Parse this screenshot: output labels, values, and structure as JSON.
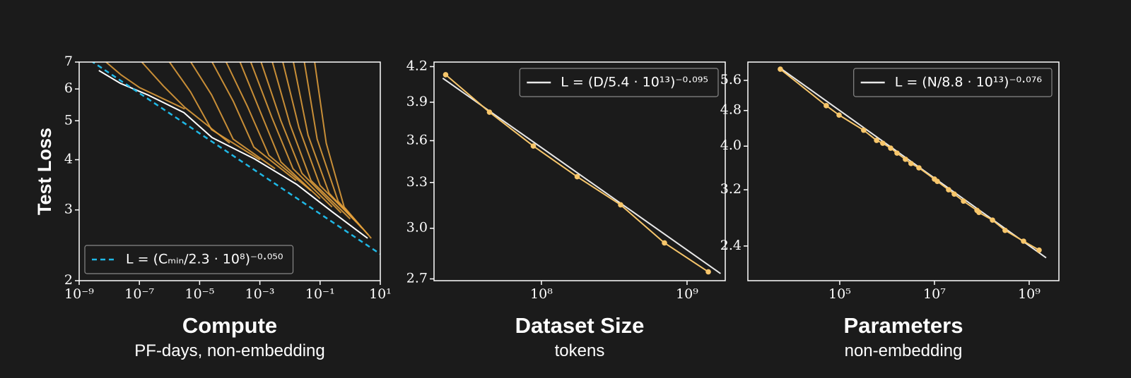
{
  "chart_data": [
    {
      "type": "line",
      "ylabel": "Test Loss",
      "xlabel": "Compute",
      "xlabel_sub": "PF-days, non-embedding",
      "xscale": "log",
      "yscale": "log",
      "legend": "lower left",
      "xlim": [
        1e-09,
        10
      ],
      "ylim": [
        2,
        7
      ],
      "xticks": [
        {
          "value": 1e-09,
          "label": "10⁻⁹"
        },
        {
          "value": 1e-07,
          "label": "10⁻⁷"
        },
        {
          "value": 1e-05,
          "label": "10⁻⁵"
        },
        {
          "value": 0.001,
          "label": "10⁻³"
        },
        {
          "value": 0.1,
          "label": "10⁻¹"
        },
        {
          "value": 10,
          "label": "10¹"
        }
      ],
      "yticks": [
        2,
        3,
        4,
        5,
        6,
        7
      ],
      "series": [
        {
          "color": "#e6a23c",
          "x": [
            7.8e-09,
            2.5e-08,
            1e-07,
            3.2e-06
          ],
          "values": [
            7,
            6.5,
            6.05,
            5.35
          ]
        },
        {
          "color": "#e6a23c",
          "x": [
            1.2e-07,
            6.3e-07,
            3.2e-06,
            0.0001
          ],
          "values": [
            7,
            6.1,
            5.4,
            4.4
          ]
        },
        {
          "color": "#e6a23c",
          "x": [
            1e-06,
            5e-06,
            2.5e-05,
            0.001
          ],
          "values": [
            7,
            5.9,
            4.75,
            4.0
          ]
        },
        {
          "color": "#e6a23c",
          "x": [
            5.1e-06,
            2.5e-05,
            0.00013,
            0.0032
          ],
          "values": [
            7,
            5.8,
            4.5,
            3.8
          ]
        },
        {
          "color": "#e6a23c",
          "x": [
            2.6e-05,
            0.00013,
            0.00063,
            0.016
          ],
          "values": [
            7,
            5.6,
            4.3,
            3.55
          ]
        },
        {
          "color": "#e6a23c",
          "x": [
            7.6e-05,
            0.0004,
            0.002,
            0.05
          ],
          "values": [
            7,
            5.4,
            4.1,
            3.35
          ]
        },
        {
          "color": "#e6a23c",
          "x": [
            0.00022,
            0.001,
            0.005,
            0.1
          ],
          "values": [
            7,
            5.3,
            3.95,
            3.2
          ]
        },
        {
          "color": "#e6a23c",
          "x": [
            0.0005,
            0.0025,
            0.0126,
            0.25
          ],
          "values": [
            7,
            5.1,
            3.8,
            3.05
          ]
        },
        {
          "color": "#e6a23c",
          "x": [
            0.0011,
            0.005,
            0.025,
            0.5
          ],
          "values": [
            7,
            5.0,
            3.7,
            2.95
          ]
        },
        {
          "color": "#e6a23c",
          "x": [
            0.0026,
            0.01,
            0.05,
            1
          ],
          "values": [
            7,
            4.9,
            3.55,
            2.85
          ]
        },
        {
          "color": "#e6a23c",
          "x": [
            0.0058,
            0.02,
            0.1,
            1.6
          ],
          "values": [
            7,
            4.8,
            3.45,
            2.8
          ]
        },
        {
          "color": "#e6a23c",
          "x": [
            0.013,
            0.04,
            0.2,
            2.5
          ],
          "values": [
            7,
            4.6,
            3.3,
            2.7
          ]
        },
        {
          "color": "#e6a23c",
          "x": [
            0.03,
            0.08,
            0.4,
            4
          ],
          "values": [
            7,
            4.5,
            3.15,
            2.6
          ]
        },
        {
          "color": "#e6a23c",
          "x": [
            0.066,
            0.16,
            0.63,
            5
          ],
          "values": [
            7,
            4.4,
            3.05,
            2.55
          ]
        },
        {
          "color": "#ffffff",
          "x": [
            4.5e-09,
            2.3e-08,
            2e-07,
            3e-06,
            2.6e-05,
            0.00066,
            0.017,
            0.25,
            3.8
          ],
          "values": [
            6.67,
            6.2,
            5.79,
            5.24,
            4.54,
            4.02,
            3.47,
            2.97,
            2.55
          ]
        },
        {
          "name": "L = (Cₘᵢₙ/2.3 · 10⁸)⁻⁰·⁰⁵⁰",
          "color": "#1fb8e6",
          "dashed": true,
          "x": [
            2.4e-09,
            10
          ],
          "values": [
            7.06,
            2.33
          ]
        }
      ]
    },
    {
      "type": "line",
      "xlabel": "Dataset Size",
      "xlabel_sub": "tokens",
      "xscale": "log",
      "yscale": "log",
      "legend": "upper right",
      "xlim": [
        18300000.0,
        1830000000.0
      ],
      "ylim": [
        2.69,
        4.24
      ],
      "xticks": [
        {
          "value": 100000000.0,
          "label": "10⁸"
        },
        {
          "value": 1000000000.0,
          "label": "10⁹"
        }
      ],
      "yticks": [
        {
          "value": 2.7,
          "label": "2.7"
        },
        {
          "value": 3,
          "label": "3.0"
        },
        3.3,
        3.6,
        3.9,
        4.2
      ],
      "series": [
        {
          "name": "L = (D/5.4 · 10¹³)⁻⁰·⁰⁹⁵",
          "color": "#e8e8e8",
          "x": [
            21000000.0,
            1700000000.0
          ],
          "values": [
            4.1,
            2.73
          ]
        },
        {
          "color": "#f7c66b",
          "markers": true,
          "x": [
            22000000.0,
            44000000.0,
            88000000.0,
            176000000.0,
            350000000.0,
            700000000.0,
            1400000000.0
          ],
          "values": [
            4.13,
            3.82,
            3.56,
            3.34,
            3.15,
            2.91,
            2.74
          ]
        }
      ]
    },
    {
      "type": "line",
      "xlabel": "Parameters",
      "xlabel_sub": "non-embedding",
      "xscale": "log",
      "yscale": "log",
      "legend": "upper right",
      "xlim": [
        1150,
        4240000000.0
      ],
      "ylim": [
        2.01,
        6.15
      ],
      "xticks": [
        {
          "value": 100000.0,
          "label": "10⁵"
        },
        {
          "value": 10000000.0,
          "label": "10⁷"
        },
        {
          "value": 1000000000.0,
          "label": "10⁹"
        }
      ],
      "yticks": [
        2.4,
        3.2,
        {
          "value": 4,
          "label": "4.0"
        },
        4.8,
        5.6
      ],
      "series": [
        {
          "name": "L = (N/8.8 · 10¹³)⁻⁰·⁰⁷⁶",
          "color": "#e8e8e8",
          "x": [
            5570,
            2280000000.0
          ],
          "values": [
            5.96,
            2.26
          ]
        },
        {
          "color": "#f7c66b",
          "markers": true,
          "x": [
            5570,
            52000,
            97000,
            320000,
            600000,
            810000,
            1190000,
            1620000,
            2440000,
            3200000,
            4700000,
            10000000,
            11500000,
            19900000,
            26200000,
            41000000,
            79000000,
            87000000,
            168000000,
            310000000,
            760000000,
            1620000000
          ],
          "values": [
            5.93,
            4.92,
            4.69,
            4.34,
            4.12,
            4.06,
            3.96,
            3.86,
            3.74,
            3.66,
            3.58,
            3.38,
            3.34,
            3.2,
            3.13,
            3.02,
            2.88,
            2.85,
            2.74,
            2.6,
            2.46,
            2.35
          ]
        }
      ]
    }
  ]
}
